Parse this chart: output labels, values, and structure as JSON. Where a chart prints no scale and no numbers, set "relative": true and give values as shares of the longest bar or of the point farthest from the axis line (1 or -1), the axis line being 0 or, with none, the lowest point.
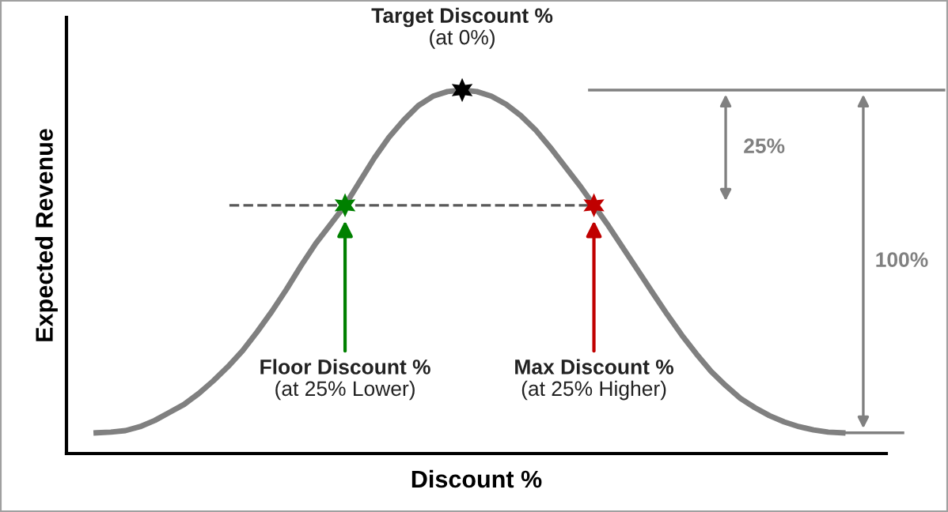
{
  "chart_data": {
    "type": "line",
    "relative": true,
    "xlabel": "Discount %",
    "ylabel": "Expected Revenue",
    "categories": [
      null,
      null,
      null,
      null,
      null,
      null,
      null,
      null,
      null,
      null,
      null,
      null,
      null,
      null,
      null,
      null,
      null,
      null,
      null,
      null,
      null,
      null,
      null,
      null,
      null,
      null,
      null,
      null,
      null,
      null,
      null,
      null,
      null,
      null,
      null,
      null,
      null,
      null,
      null,
      null,
      null,
      null,
      null,
      null,
      null,
      null,
      null,
      null,
      null,
      null,
      null,
      null
    ],
    "series": [
      {
        "color": "#808080",
        "marker": "none",
        "line_style": "solid",
        "values": [
          0.057,
          0.059,
          0.063,
          0.074,
          0.091,
          0.113,
          0.135,
          0.165,
          0.2,
          0.239,
          0.283,
          0.335,
          0.391,
          0.452,
          0.517,
          0.578,
          0.63,
          0.683,
          0.748,
          0.813,
          0.87,
          0.917,
          0.957,
          0.983,
          0.996,
          1,
          0.996,
          0.983,
          0.961,
          0.93,
          0.891,
          0.843,
          0.791,
          0.739,
          0.683,
          0.626,
          0.565,
          0.504,
          0.443,
          0.383,
          0.326,
          0.274,
          0.226,
          0.187,
          0.152,
          0.126,
          0.104,
          0.087,
          0.074,
          0.065,
          0.059,
          0.057
        ]
      }
    ],
    "ref_lines": [
      {
        "axis": "y",
        "value": 0.683,
        "line_style": "dashed",
        "color": "#595959"
      }
    ],
    "annotations": [
      "Target Discount %\n(at 0%)",
      "Floor Discount %\n(at 25% Lower)",
      "Max Discount %\n(at 25% Higher)",
      "25%",
      "100%"
    ]
  }
}
